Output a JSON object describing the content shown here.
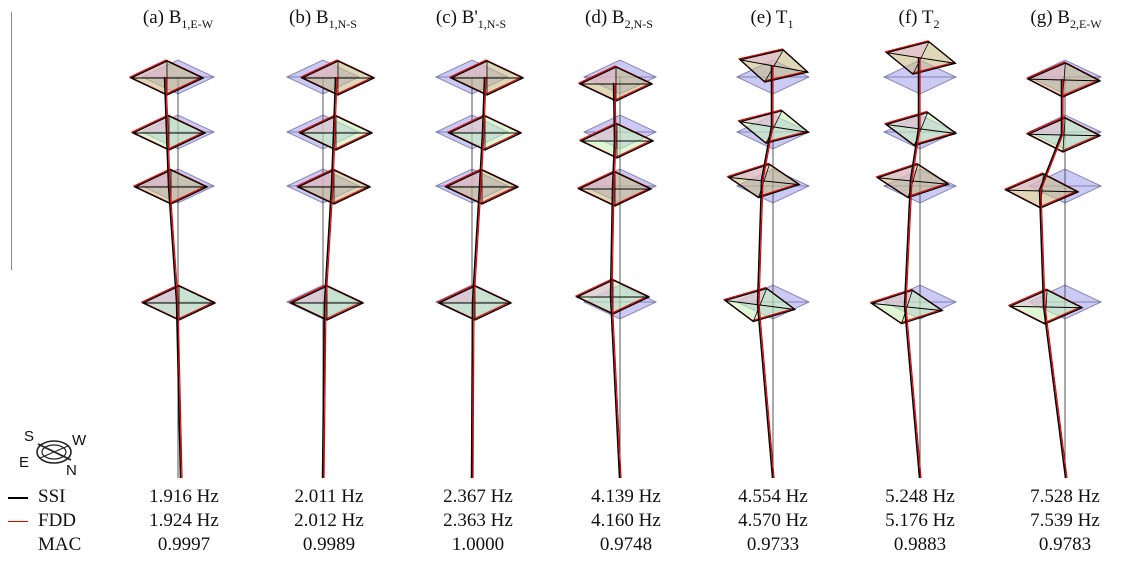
{
  "modes": [
    {
      "label": "(a) B",
      "sub": "1,E-W",
      "ssi": "1.916 Hz",
      "fdd": "1.924 Hz",
      "mac": "0.9997"
    },
    {
      "label": "(b) B",
      "sub": "1,N-S",
      "ssi": "2.011 Hz",
      "fdd": "2.012 Hz",
      "mac": "0.9989"
    },
    {
      "label": "(c) B'",
      "sub": "1,N-S",
      "ssi": "2.367 Hz",
      "fdd": "2.363 Hz",
      "mac": "1.0000"
    },
    {
      "label": "(d) B",
      "sub": "2,N-S",
      "ssi": "4.139 Hz",
      "fdd": "4.160 Hz",
      "mac": "0.9748"
    },
    {
      "label": "(e) T",
      "sub": "1",
      "ssi": "4.554 Hz",
      "fdd": "4.570 Hz",
      "mac": "0.9733"
    },
    {
      "label": "(f) T",
      "sub": "2",
      "ssi": "5.248 Hz",
      "fdd": "5.176 Hz",
      "mac": "0.9883"
    },
    {
      "label": "(g) B",
      "sub": "2,E-W",
      "ssi": "7.528 Hz",
      "fdd": "7.539 Hz",
      "mac": "0.9783"
    }
  ],
  "legend": {
    "ssi": "SSI",
    "fdd": "FDD",
    "mac": "MAC"
  },
  "compass": {
    "s": "S",
    "w": "W",
    "e": "E",
    "n": "N"
  },
  "colors": {
    "ssi": "#000000",
    "fdd": "#e00000",
    "undeformed": "#b8b8f0",
    "green": "#c8f0b8",
    "pink": "#e8b8d8",
    "tan": "#c8bc88"
  }
}
